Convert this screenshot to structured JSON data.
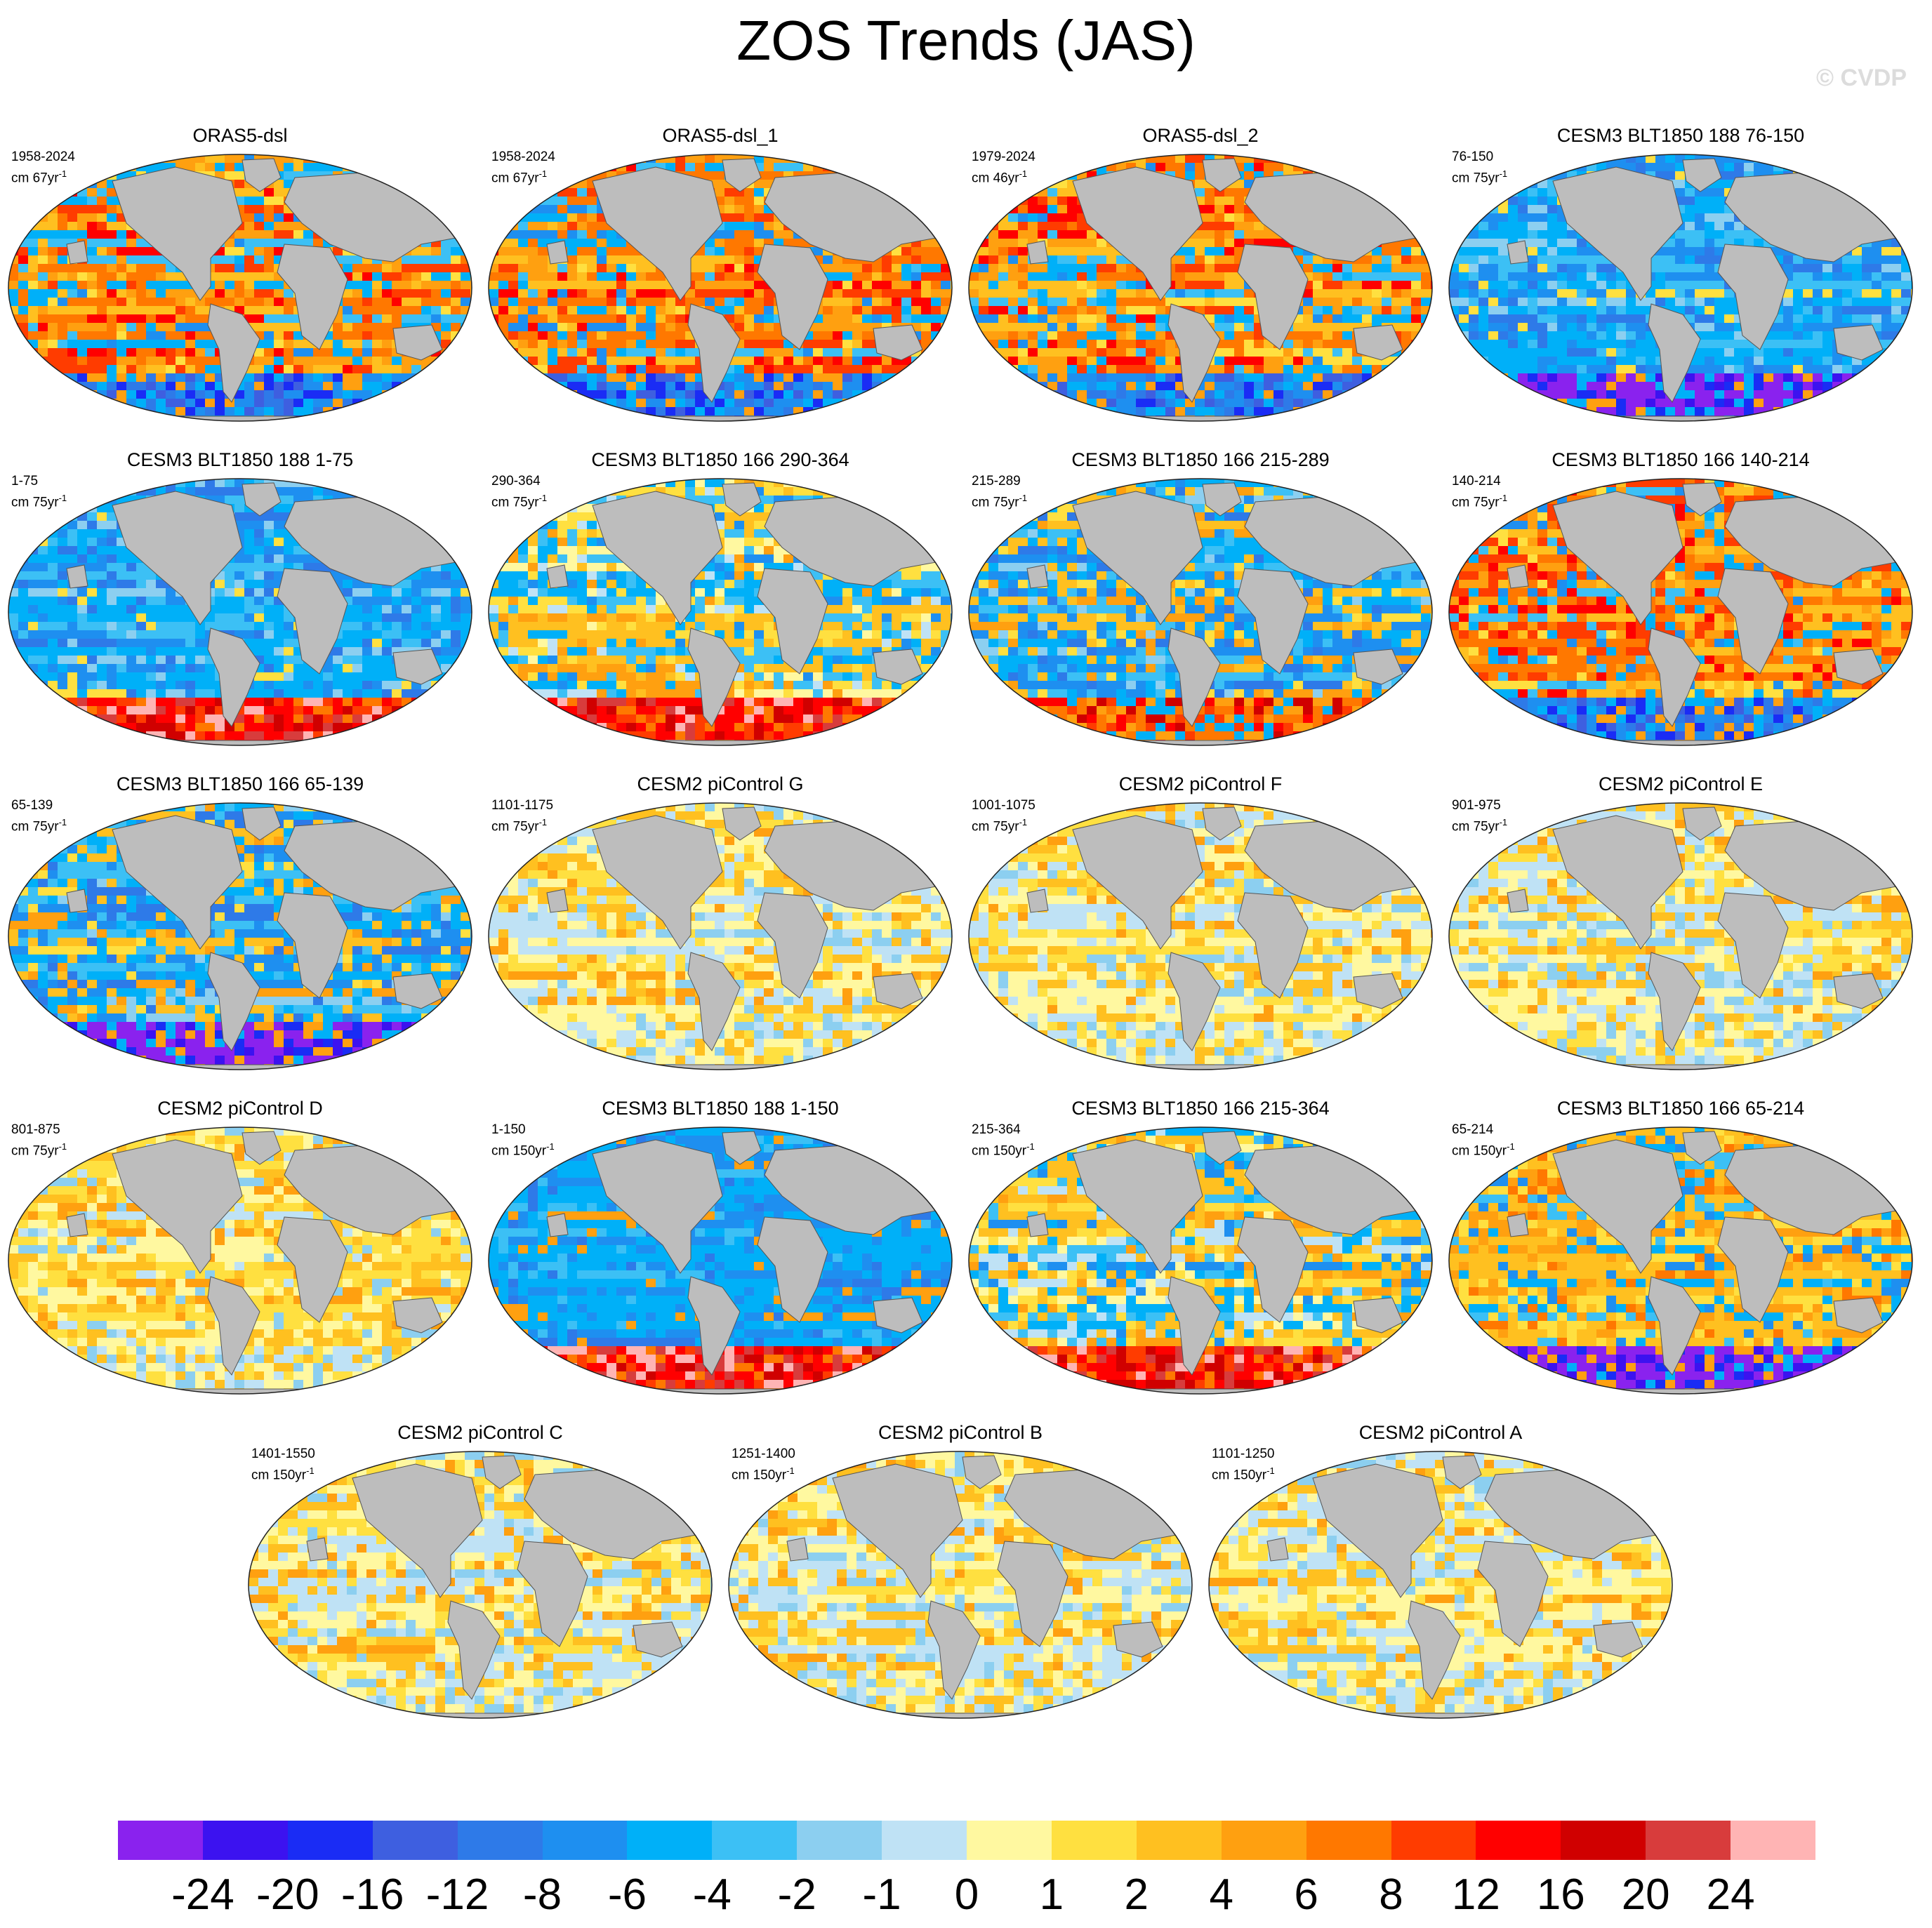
{
  "title": "ZOS Trends (JAS)",
  "copyright": "© CVDP",
  "panels": [
    {
      "title": "ORAS5-dsl",
      "period": "1958-2024",
      "units": "cm 67yr",
      "units_sup": "-1",
      "pattern": "warm-mixed",
      "antarctic_band": "blue"
    },
    {
      "title": "ORAS5-dsl_1",
      "period": "1958-2024",
      "units": "cm 67yr",
      "units_sup": "-1",
      "pattern": "warm-mixed",
      "antarctic_band": "blue"
    },
    {
      "title": "ORAS5-dsl_2",
      "period": "1979-2024",
      "units": "cm 46yr",
      "units_sup": "-1",
      "pattern": "warm-mixed",
      "antarctic_band": "blue"
    },
    {
      "title": "CESM3 BLT1850 188 76-150",
      "period": "76-150",
      "units": "cm 75yr",
      "units_sup": "-1",
      "pattern": "cool",
      "antarctic_band": "purple"
    },
    {
      "title": "CESM3 BLT1850 188 1-75",
      "period": "1-75",
      "units": "cm 75yr",
      "units_sup": "-1",
      "pattern": "cool",
      "antarctic_band": "red"
    },
    {
      "title": "CESM3 BLT1850 166 290-364",
      "period": "290-364",
      "units": "cm 75yr",
      "units_sup": "-1",
      "pattern": "mixed",
      "antarctic_band": "red"
    },
    {
      "title": "CESM3 BLT1850 166 215-289",
      "period": "215-289",
      "units": "cm 75yr",
      "units_sup": "-1",
      "pattern": "cool-mixed",
      "antarctic_band": "orange"
    },
    {
      "title": "CESM3 BLT1850 166 140-214",
      "period": "140-214",
      "units": "cm 75yr",
      "units_sup": "-1",
      "pattern": "warm-mixed",
      "antarctic_band": "blue"
    },
    {
      "title": "CESM3 BLT1850 166 65-139",
      "period": "65-139",
      "units": "cm 75yr",
      "units_sup": "-1",
      "pattern": "cool-mixed",
      "antarctic_band": "purple"
    },
    {
      "title": "CESM2 piControl G",
      "period": "1101-1175",
      "units": "cm 75yr",
      "units_sup": "-1",
      "pattern": "weak",
      "antarctic_band": "none"
    },
    {
      "title": "CESM2 piControl F",
      "period": "1001-1075",
      "units": "cm 75yr",
      "units_sup": "-1",
      "pattern": "weak",
      "antarctic_band": "none"
    },
    {
      "title": "CESM2 piControl E",
      "period": "901-975",
      "units": "cm 75yr",
      "units_sup": "-1",
      "pattern": "weak",
      "antarctic_band": "none"
    },
    {
      "title": "CESM2 piControl D",
      "period": "801-875",
      "units": "cm 75yr",
      "units_sup": "-1",
      "pattern": "weak-warm",
      "antarctic_band": "none"
    },
    {
      "title": "CESM3 BLT1850 188 1-150",
      "period": "1-150",
      "units": "cm 150yr",
      "units_sup": "-1",
      "pattern": "strong-cool",
      "antarctic_band": "red"
    },
    {
      "title": "CESM3 BLT1850 166 215-364",
      "period": "215-364",
      "units": "cm 150yr",
      "units_sup": "-1",
      "pattern": "mixed",
      "antarctic_band": "red"
    },
    {
      "title": "CESM3 BLT1850 166 65-214",
      "period": "65-214",
      "units": "cm 150yr",
      "units_sup": "-1",
      "pattern": "warm",
      "antarctic_band": "purple"
    },
    {
      "title": "CESM2 piControl C",
      "period": "1401-1550",
      "units": "cm 150yr",
      "units_sup": "-1",
      "pattern": "weak",
      "antarctic_band": "none"
    },
    {
      "title": "CESM2 piControl B",
      "period": "1251-1400",
      "units": "cm 150yr",
      "units_sup": "-1",
      "pattern": "weak",
      "antarctic_band": "none"
    },
    {
      "title": "CESM2 piControl A",
      "period": "1101-1250",
      "units": "cm 150yr",
      "units_sup": "-1",
      "pattern": "weak",
      "antarctic_band": "none"
    }
  ],
  "colorbar": {
    "colors": [
      "#8a22ee",
      "#3c12f0",
      "#1a2cf5",
      "#3e5fe0",
      "#2e7ae8",
      "#1e8ff0",
      "#00b0f8",
      "#3cc0f5",
      "#8ccff0",
      "#bfe2f5",
      "#fff8a0",
      "#ffe040",
      "#ffc020",
      "#ffa010",
      "#ff7800",
      "#ff3c00",
      "#ff0000",
      "#d00000",
      "#d83c3c",
      "#ffb4b4"
    ],
    "labels": [
      "-24",
      "-20",
      "-16",
      "-12",
      "-8",
      "-6",
      "-4",
      "-2",
      "-1",
      "0",
      "1",
      "2",
      "4",
      "6",
      "8",
      "12",
      "16",
      "20",
      "24"
    ]
  },
  "land_color": "#bdbdbd"
}
